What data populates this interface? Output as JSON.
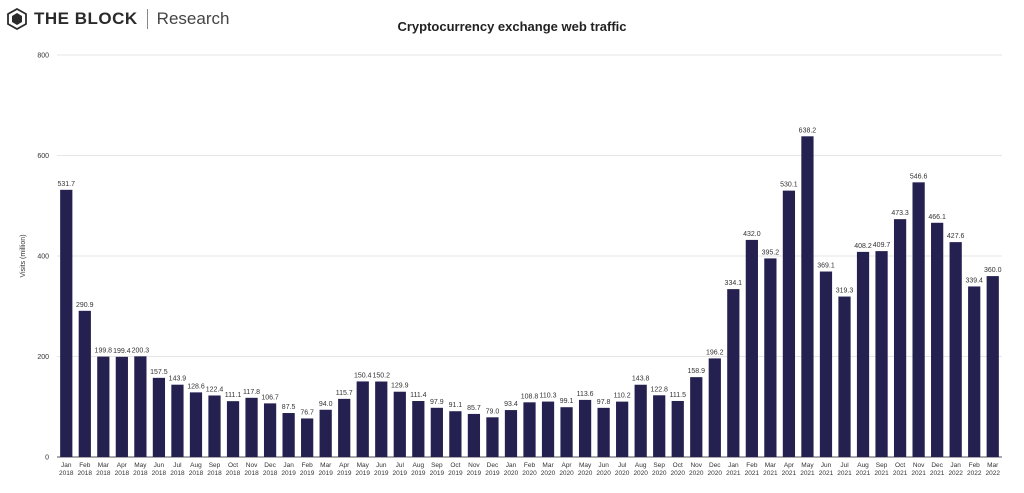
{
  "brand": {
    "name": "THE BLOCK",
    "sub": "Research"
  },
  "colors": {
    "bar": "#24204f",
    "grid": "#e6e6e6",
    "axis": "#555555"
  },
  "chart_data": {
    "type": "bar",
    "title": "Cryptocurrency exchange web traffic",
    "xlabel": "",
    "ylabel": "Visits (million)",
    "ylim": [
      0,
      800
    ],
    "yticks": [
      0,
      200,
      400,
      600,
      800
    ],
    "grid": true,
    "categories": [
      [
        "Jan",
        "2018"
      ],
      [
        "Feb",
        "2018"
      ],
      [
        "Mar",
        "2018"
      ],
      [
        "Apr",
        "2018"
      ],
      [
        "May",
        "2018"
      ],
      [
        "Jun",
        "2018"
      ],
      [
        "Jul",
        "2018"
      ],
      [
        "Aug",
        "2018"
      ],
      [
        "Sep",
        "2018"
      ],
      [
        "Oct",
        "2018"
      ],
      [
        "Nov",
        "2018"
      ],
      [
        "Dec",
        "2018"
      ],
      [
        "Jan",
        "2019"
      ],
      [
        "Feb",
        "2019"
      ],
      [
        "Mar",
        "2019"
      ],
      [
        "Apr",
        "2019"
      ],
      [
        "May",
        "2019"
      ],
      [
        "Jun",
        "2019"
      ],
      [
        "Jul",
        "2019"
      ],
      [
        "Aug",
        "2019"
      ],
      [
        "Sep",
        "2019"
      ],
      [
        "Oct",
        "2019"
      ],
      [
        "Nov",
        "2019"
      ],
      [
        "Dec",
        "2019"
      ],
      [
        "Jan",
        "2020"
      ],
      [
        "Feb",
        "2020"
      ],
      [
        "Mar",
        "2020"
      ],
      [
        "Apr",
        "2020"
      ],
      [
        "May",
        "2020"
      ],
      [
        "Jun",
        "2020"
      ],
      [
        "Jul",
        "2020"
      ],
      [
        "Aug",
        "2020"
      ],
      [
        "Sep",
        "2020"
      ],
      [
        "Oct",
        "2020"
      ],
      [
        "Nov",
        "2020"
      ],
      [
        "Dec",
        "2020"
      ],
      [
        "Jan",
        "2021"
      ],
      [
        "Feb",
        "2021"
      ],
      [
        "Mar",
        "2021"
      ],
      [
        "Apr",
        "2021"
      ],
      [
        "May",
        "2021"
      ],
      [
        "Jun",
        "2021"
      ],
      [
        "Jul",
        "2021"
      ],
      [
        "Aug",
        "2021"
      ],
      [
        "Sep",
        "2021"
      ],
      [
        "Oct",
        "2021"
      ],
      [
        "Nov",
        "2021"
      ],
      [
        "Dec",
        "2021"
      ],
      [
        "Jan",
        "2022"
      ],
      [
        "Feb",
        "2022"
      ],
      [
        "Mar",
        "2022"
      ]
    ],
    "values": [
      531.7,
      290.9,
      199.8,
      199.4,
      200.3,
      157.5,
      143.9,
      128.6,
      122.4,
      111.1,
      117.8,
      106.7,
      87.5,
      76.7,
      94.0,
      115.7,
      150.4,
      150.2,
      129.9,
      111.4,
      97.9,
      91.1,
      85.7,
      79.0,
      93.4,
      108.8,
      110.3,
      99.1,
      113.6,
      97.8,
      110.2,
      143.8,
      122.8,
      111.5,
      158.9,
      196.2,
      334.1,
      432.0,
      395.2,
      530.1,
      638.2,
      369.1,
      319.3,
      408.2,
      409.7,
      473.3,
      546.6,
      466.1,
      427.6,
      339.4,
      360.0
    ],
    "value_labels": [
      "531.7",
      "290.9",
      "199.8",
      "199.4",
      "200.3",
      "157.5",
      "143.9",
      "128.6",
      "122.4",
      "111.1",
      "117.8",
      "106.7",
      "87.5",
      "76.7",
      "94.0",
      "115.7",
      "150.4",
      "150.2",
      "129.9",
      "111.4",
      "97.9",
      "91.1",
      "85.7",
      "79.0",
      "93.4",
      "108.8",
      "110.3",
      "99.1",
      "113.6",
      "97.8",
      "110.2",
      "143.8",
      "122.8",
      "111.5",
      "158.9",
      "196.2",
      "334.1",
      "432.0",
      "395.2",
      "530.1",
      "638.2",
      "369.1",
      "319.3",
      "408.2",
      "409.7",
      "473.3",
      "546.6",
      "466.1",
      "427.6",
      "339.4",
      "360.0"
    ]
  }
}
